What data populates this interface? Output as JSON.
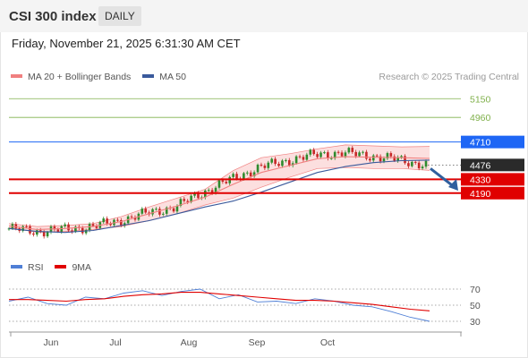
{
  "header": {
    "title": "CSI 300 index",
    "period": "DAILY"
  },
  "datetime": "Friday, November 21, 2025 6:31:30 AM CET",
  "legend": {
    "ma20": "MA 20 + Bollinger Bands",
    "ma50": "MA 50",
    "rsi": "RSI",
    "ma9": "9MA"
  },
  "credit": "Research © 2025 Trading Central",
  "colors": {
    "ma20": "#f08080",
    "ma50": "#3a5a9c",
    "band": "#fbd4d4",
    "up": "#2e8b2e",
    "down": "#c62828",
    "target": "#7fb04a",
    "pivot": "#1e66f5",
    "support": "#e00000",
    "last": "#2a2a2a",
    "rsi": "#4f7fd6",
    "rsi_ma": "#e00000",
    "arrow": "#2f5f9e"
  },
  "chart_data": [
    {
      "type": "line",
      "title": "CSI 300 index",
      "ylim": [
        3560,
        5280
      ],
      "x_ticks": [
        "Jun",
        "Jul",
        "Aug",
        "Sep",
        "Oct"
      ],
      "ma20": [
        3856,
        3820,
        3830,
        3850,
        3900,
        3980,
        4060,
        4150,
        4280,
        4400,
        4470,
        4540,
        4560,
        4555,
        4550,
        4543
      ],
      "ma20_upper": [
        3880,
        3850,
        3860,
        3880,
        3950,
        4050,
        4140,
        4230,
        4420,
        4550,
        4590,
        4640,
        4680,
        4670,
        4660,
        4665
      ],
      "ma20_lower": [
        3840,
        3790,
        3800,
        3820,
        3850,
        3910,
        3980,
        4070,
        4140,
        4250,
        4350,
        4440,
        4450,
        4440,
        4440,
        4421
      ],
      "ma50": [
        3830,
        3800,
        3790,
        3810,
        3860,
        3910,
        3980,
        4050,
        4110,
        4200,
        4300,
        4400,
        4460,
        4500,
        4520,
        4526
      ],
      "price_close": [
        3830,
        3800,
        3820,
        3850,
        3910,
        3990,
        4050,
        4200,
        4330,
        4450,
        4520,
        4580,
        4600,
        4570,
        4530,
        4476
      ],
      "levels": [
        {
          "label": "5150",
          "kind": "target"
        },
        {
          "label": "4960",
          "kind": "target"
        },
        {
          "label": "4710",
          "kind": "pivot"
        },
        {
          "label": "4476",
          "kind": "last"
        },
        {
          "label": "4330",
          "kind": "support"
        },
        {
          "label": "4190",
          "kind": "support"
        }
      ]
    },
    {
      "type": "line",
      "ylim": [
        20,
        80
      ],
      "y_ticks": [
        70,
        50,
        30
      ],
      "series": [
        {
          "name": "RSI",
          "values": [
            55,
            60,
            52,
            50,
            60,
            58,
            65,
            68,
            62,
            67,
            70,
            58,
            63,
            54,
            55,
            52,
            58,
            55,
            50,
            48,
            42,
            35,
            30
          ]
        },
        {
          "name": "9MA",
          "values": [
            57,
            57,
            56,
            55,
            57,
            58,
            61,
            63,
            64,
            66,
            66,
            64,
            62,
            60,
            58,
            56,
            56,
            55,
            53,
            51,
            48,
            45,
            43
          ]
        }
      ]
    }
  ]
}
